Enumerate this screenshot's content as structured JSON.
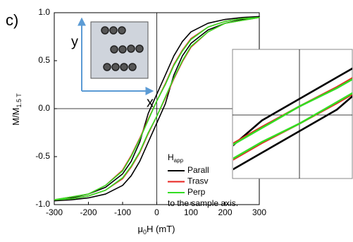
{
  "panel_label": "c)",
  "chart_data": {
    "type": "line",
    "xlabel": {
      "pre": "μ",
      "sub": "0",
      "post": "H (mT)"
    },
    "ylabel": {
      "main": "M/M",
      "sub": "1.5 T"
    },
    "x": [
      -300,
      -250,
      -200,
      -150,
      -100,
      -75,
      -50,
      -25,
      0,
      25,
      50,
      75,
      100,
      150,
      200,
      250,
      300,
      300,
      250,
      200,
      150,
      100,
      75,
      50,
      25,
      0,
      -25,
      -50,
      -75,
      -100,
      -150,
      -200,
      -250,
      -300
    ],
    "series": [
      {
        "name": "Parall",
        "color": "#000000",
        "values": [
          -0.96,
          -0.95,
          -0.93,
          -0.89,
          -0.8,
          -0.7,
          -0.55,
          -0.35,
          -0.15,
          0.05,
          0.35,
          0.55,
          0.68,
          0.82,
          0.89,
          0.93,
          0.96,
          0.96,
          0.95,
          0.93,
          0.89,
          0.8,
          0.7,
          0.55,
          0.35,
          0.15,
          -0.05,
          -0.35,
          -0.55,
          -0.68,
          -0.82,
          -0.89,
          -0.93,
          -0.96
        ]
      },
      {
        "name": "Trasv",
        "color": "#e8231f",
        "values": [
          -0.95,
          -0.94,
          -0.91,
          -0.85,
          -0.73,
          -0.61,
          -0.46,
          -0.26,
          -0.08,
          0.11,
          0.31,
          0.49,
          0.64,
          0.8,
          0.89,
          0.92,
          0.95,
          0.95,
          0.94,
          0.91,
          0.85,
          0.73,
          0.61,
          0.46,
          0.26,
          0.08,
          -0.11,
          -0.31,
          -0.49,
          -0.64,
          -0.8,
          -0.89,
          -0.92,
          -0.95
        ]
      },
      {
        "name": "Perp",
        "color": "#33dd22",
        "values": [
          -0.95,
          -0.94,
          -0.91,
          -0.85,
          -0.72,
          -0.6,
          -0.45,
          -0.25,
          -0.08,
          0.12,
          0.32,
          0.5,
          0.65,
          0.8,
          0.89,
          0.92,
          0.95,
          0.95,
          0.94,
          0.91,
          0.85,
          0.72,
          0.6,
          0.45,
          0.25,
          0.08,
          -0.12,
          -0.32,
          -0.5,
          -0.65,
          -0.8,
          -0.89,
          -0.92,
          -0.95
        ]
      }
    ],
    "xlim": [
      -300,
      300
    ],
    "ylim": [
      -1,
      1
    ],
    "xticks": [
      -300,
      -200,
      -100,
      0,
      100,
      200,
      300
    ],
    "yticks": [
      {
        "value": -1,
        "label": "-1.0"
      },
      {
        "value": -0.5,
        "label": "-0.5"
      },
      {
        "value": 0,
        "label": "0.0"
      },
      {
        "value": 0.5,
        "label": "0.5"
      },
      {
        "value": 1,
        "label": "1.0"
      }
    ],
    "legend_title": {
      "main": "H",
      "sub": "app"
    },
    "legend_note": "to the sample axis."
  },
  "diagram": {
    "y_label": "y",
    "x_label": "x"
  }
}
